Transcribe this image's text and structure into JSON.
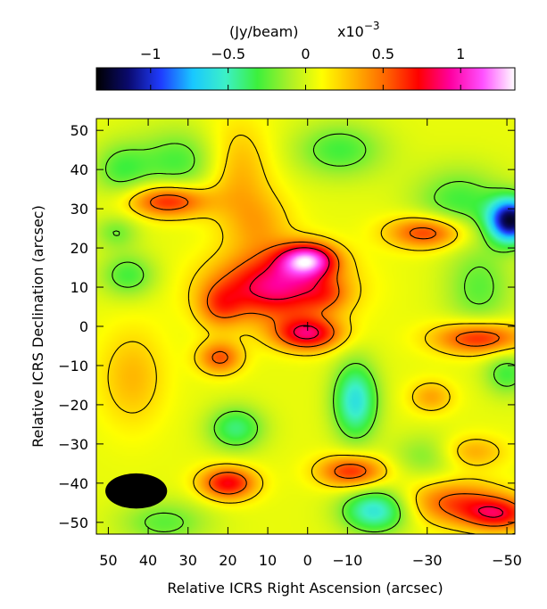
{
  "chart_data": {
    "type": "heatmap",
    "colorbar": {
      "label": "(Jy/beam)",
      "scale_label": "x10",
      "scale_exponent": "−3",
      "range": [
        -1.35,
        1.35
      ],
      "ticks": [
        {
          "value": -1,
          "label": "−1"
        },
        {
          "value": -0.5,
          "label": "−0.5"
        },
        {
          "value": 0,
          "label": "0"
        },
        {
          "value": 0.5,
          "label": "0.5"
        },
        {
          "value": 1,
          "label": "1"
        }
      ],
      "colormap": [
        "#000000",
        "#0a0a6e",
        "#1f3cff",
        "#19c8ff",
        "#3cf0c8",
        "#3cf03c",
        "#aaf028",
        "#ffff00",
        "#ffb400",
        "#ff6400",
        "#ff0000",
        "#ff00a0",
        "#ff50ff",
        "#ffffff"
      ]
    },
    "xlabel": "Relative ICRS Right Ascension (arcsec)",
    "ylabel": "Relative ICRS Declination (arcsec)",
    "xlim": [
      53,
      -52
    ],
    "ylim": [
      -53,
      53
    ],
    "x_ticks": [
      {
        "value": 50,
        "label": "50"
      },
      {
        "value": 40,
        "label": "40"
      },
      {
        "value": 30,
        "label": "30"
      },
      {
        "value": 20,
        "label": "20"
      },
      {
        "value": 10,
        "label": "10"
      },
      {
        "value": 0,
        "label": "0"
      },
      {
        "value": -10,
        "label": "−10"
      },
      {
        "value": -30,
        "label": "−30"
      },
      {
        "value": -50,
        "label": "−50"
      }
    ],
    "y_ticks": [
      {
        "value": 50,
        "label": "50"
      },
      {
        "value": 40,
        "label": "40"
      },
      {
        "value": 30,
        "label": "30"
      },
      {
        "value": 20,
        "label": "20"
      },
      {
        "value": 10,
        "label": "10"
      },
      {
        "value": 0,
        "label": "0"
      },
      {
        "value": -10,
        "label": "−10"
      },
      {
        "value": -20,
        "label": "−20"
      },
      {
        "value": -30,
        "label": "−30"
      },
      {
        "value": -40,
        "label": "−40"
      },
      {
        "value": -50,
        "label": "−50"
      }
    ],
    "background_level": 0.05,
    "sources": [
      {
        "x": 8,
        "y": 10,
        "sx": 11,
        "sy": 6,
        "amp": 0.85
      },
      {
        "x": 22,
        "y": 5,
        "sx": 4,
        "sy": 4,
        "amp": 0.35
      },
      {
        "x": 22,
        "y": -8,
        "sx": 4,
        "sy": 3,
        "amp": 0.5
      },
      {
        "x": 0,
        "y": -2,
        "sx": 6,
        "sy": 3,
        "amp": 0.75
      },
      {
        "x": 0,
        "y": 17,
        "sx": 5,
        "sy": 3,
        "amp": 0.95
      },
      {
        "x": -5,
        "y": 8,
        "sx": 4,
        "sy": 3,
        "amp": 0.2
      },
      {
        "x": 12,
        "y": 26,
        "sx": 6,
        "sy": 6,
        "amp": 0.25
      },
      {
        "x": 18,
        "y": 40,
        "sx": 6,
        "sy": 9,
        "amp": 0.3
      },
      {
        "x": 35,
        "y": 32,
        "sx": 7,
        "sy": 3,
        "amp": 0.65
      },
      {
        "x": -30,
        "y": 24,
        "sx": 7,
        "sy": 3,
        "amp": 0.6
      },
      {
        "x": -43,
        "y": -3,
        "sx": 8,
        "sy": 3,
        "amp": 0.65
      },
      {
        "x": -31,
        "y": -18,
        "sx": 4,
        "sy": 3,
        "amp": 0.3
      },
      {
        "x": -41,
        "y": -32,
        "sx": 6,
        "sy": 3,
        "amp": 0.3
      },
      {
        "x": -11,
        "y": -37,
        "sx": 6,
        "sy": 3,
        "amp": 0.6
      },
      {
        "x": 20,
        "y": -40,
        "sx": 5,
        "sy": 3,
        "amp": 0.7
      },
      {
        "x": -37,
        "y": -45,
        "sx": 9,
        "sy": 4,
        "amp": 0.5
      },
      {
        "x": -48,
        "y": -48,
        "sx": 6,
        "sy": 3,
        "amp": 0.6
      },
      {
        "x": 44,
        "y": -13,
        "sx": 6,
        "sy": 9,
        "amp": 0.25
      },
      {
        "x": -51,
        "y": 27,
        "sx": 4,
        "sy": 4,
        "amp": -1.25
      },
      {
        "x": -12,
        "y": -19,
        "sx": 4,
        "sy": 7,
        "amp": -0.65
      },
      {
        "x": -17,
        "y": -47,
        "sx": 6,
        "sy": 4,
        "amp": -0.65
      },
      {
        "x": 18,
        "y": -26,
        "sx": 5,
        "sy": 4,
        "amp": -0.45
      },
      {
        "x": -8,
        "y": 45,
        "sx": 8,
        "sy": 5,
        "amp": -0.35
      },
      {
        "x": -38,
        "y": 32,
        "sx": 8,
        "sy": 6,
        "amp": -0.35
      },
      {
        "x": 32,
        "y": 42,
        "sx": 8,
        "sy": 6,
        "amp": -0.35
      },
      {
        "x": -43,
        "y": 10,
        "sx": 6,
        "sy": 8,
        "amp": -0.3
      },
      {
        "x": 45,
        "y": 13,
        "sx": 5,
        "sy": 4,
        "amp": -0.35
      },
      {
        "x": 47,
        "y": 40,
        "sx": 5,
        "sy": 5,
        "amp": -0.3
      },
      {
        "x": 48,
        "y": 24,
        "sx": 4,
        "sy": 3,
        "amp": -0.25
      },
      {
        "x": 36,
        "y": -50,
        "sx": 8,
        "sy": 4,
        "amp": -0.3
      },
      {
        "x": -50,
        "y": -12,
        "sx": 4,
        "sy": 4,
        "amp": -0.35
      },
      {
        "x": -30,
        "y": -33,
        "sx": 6,
        "sy": 4,
        "amp": -0.25
      }
    ],
    "contour_levels": [
      -0.2,
      0.2,
      0.5,
      0.8
    ],
    "beam": {
      "x": 43,
      "y": -42,
      "major_arcsec": 15.5,
      "minor_arcsec": 9,
      "position_angle_deg": 90
    },
    "center_marker": {
      "x": 0,
      "y": 0
    }
  }
}
